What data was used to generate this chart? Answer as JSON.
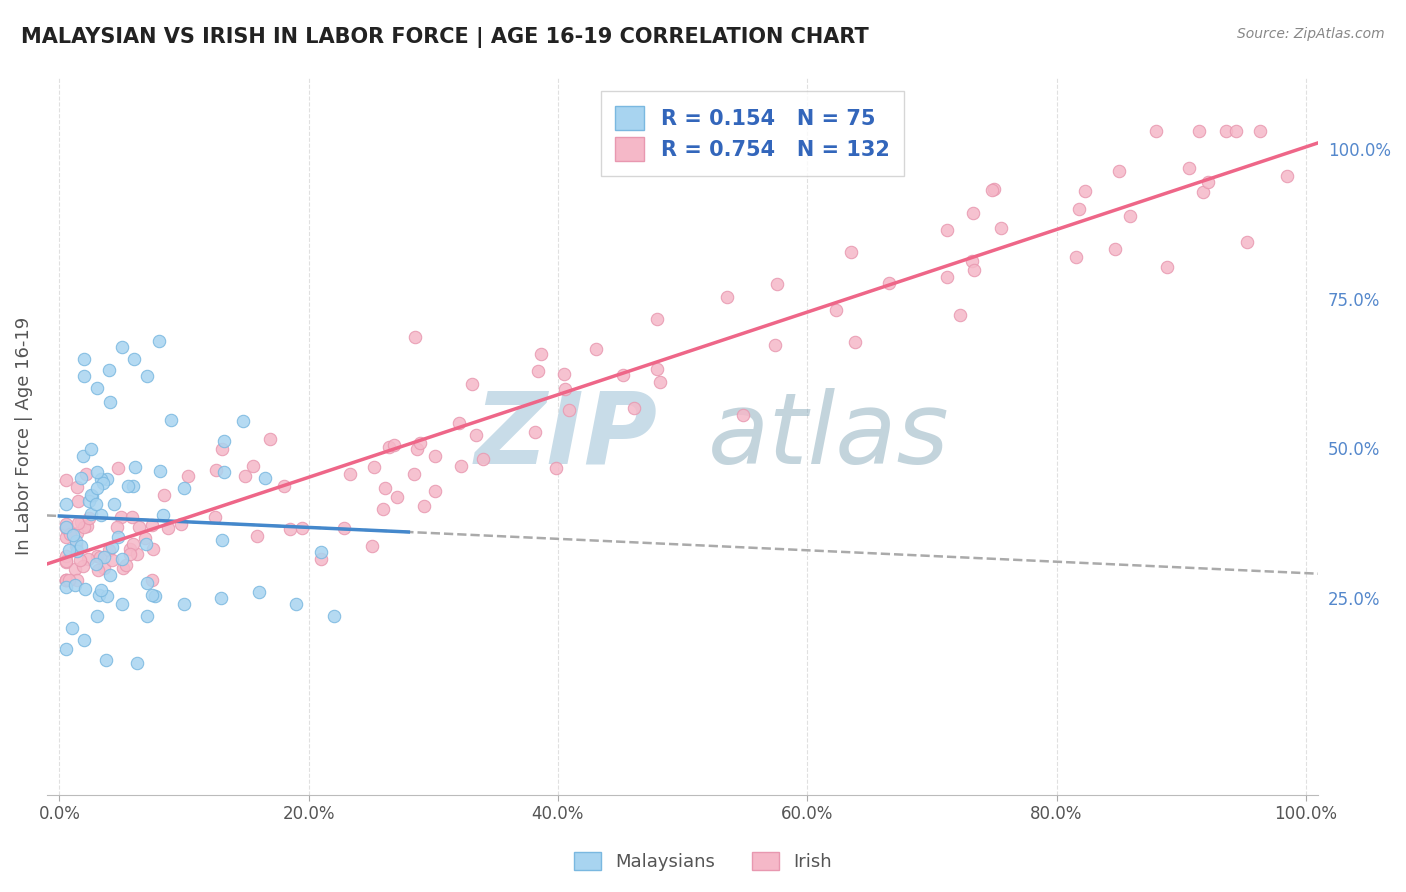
{
  "title": "MALAYSIAN VS IRISH IN LABOR FORCE | AGE 16-19 CORRELATION CHART",
  "source": "Source: ZipAtlas.com",
  "ylabel": "In Labor Force | Age 16-19",
  "xlim": [
    -0.01,
    1.01
  ],
  "ylim": [
    -0.08,
    1.12
  ],
  "malaysians_R": 0.154,
  "malaysians_N": 75,
  "irish_R": 0.754,
  "irish_N": 132,
  "blue_color": "#a8d4f0",
  "pink_color": "#f5b8c8",
  "blue_edge": "#7ab8e0",
  "pink_edge": "#e898b0",
  "blue_line_color": "#4488cc",
  "pink_line_color": "#ee6688",
  "gray_dash_color": "#aaaaaa",
  "title_color": "#222222",
  "legend_text_color": "#3366bb",
  "watermark_color": "#d0e4f0",
  "watermark_text_color": "#7aaabb",
  "background_color": "#ffffff",
  "grid_color": "#dddddd",
  "right_tick_color": "#5588cc",
  "xtick_labels": [
    "0.0%",
    "20.0%",
    "40.0%",
    "60.0%",
    "80.0%",
    "100.0%"
  ],
  "xtick_vals": [
    0.0,
    0.2,
    0.4,
    0.6,
    0.8,
    1.0
  ],
  "ytick_labels_right": [
    "25.0%",
    "50.0%",
    "75.0%",
    "100.0%"
  ],
  "ytick_vals_right": [
    0.25,
    0.5,
    0.75,
    1.0
  ],
  "legend_bottom_labels": [
    "Malaysians",
    "Irish"
  ],
  "marker_size": 80,
  "line_width": 2.5
}
